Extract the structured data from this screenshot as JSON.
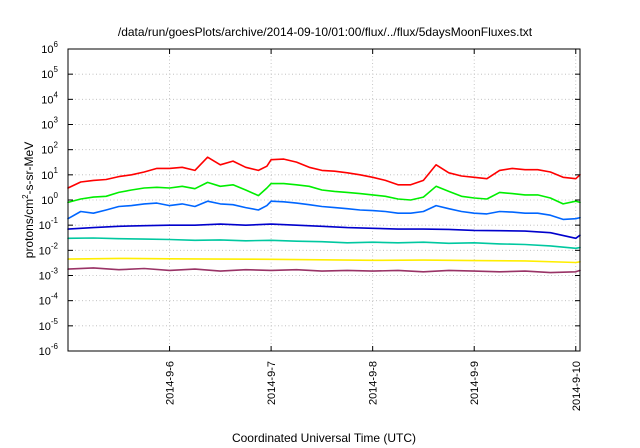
{
  "chart_data": {
    "type": "line",
    "title": "/data/run/goesPlots/archive/2014-09-10/01:00/flux/../flux/5daysMoonFluxes.txt",
    "xlabel": "Coordinated Universal Time (UTC)",
    "ylabel": "protons/cm2-s-sr-MeV",
    "ylabel_parts": {
      "pre": "protons/cm",
      "sup": "2",
      "post": "-s-sr-MeV"
    },
    "y_scale": "log",
    "ylim_exponents": [
      -6,
      6
    ],
    "y_ticks": [
      {
        "base": "10",
        "exp": "-6",
        "value": -6
      },
      {
        "base": "10",
        "exp": "-5",
        "value": -5
      },
      {
        "base": "10",
        "exp": "-4",
        "value": -4
      },
      {
        "base": "10",
        "exp": "-3",
        "value": -3
      },
      {
        "base": "10",
        "exp": "-2",
        "value": -2
      },
      {
        "base": "10",
        "exp": "-1",
        "value": -1
      },
      {
        "base": "10",
        "exp": "0",
        "value": 0
      },
      {
        "base": "10",
        "exp": "1",
        "value": 1
      },
      {
        "base": "10",
        "exp": "2",
        "value": 2
      },
      {
        "base": "10",
        "exp": "3",
        "value": 3
      },
      {
        "base": "10",
        "exp": "4",
        "value": 4
      },
      {
        "base": "10",
        "exp": "5",
        "value": 5
      },
      {
        "base": "10",
        "exp": "6",
        "value": 6
      }
    ],
    "xlim": [
      "2014-09-05T00:00",
      "2014-09-10T01:00"
    ],
    "x_ticks": [
      {
        "label": "2014-9-6",
        "value": "2014-09-06T00:00"
      },
      {
        "label": "2014-9-7",
        "value": "2014-09-07T00:00"
      },
      {
        "label": "2014-9-8",
        "value": "2014-09-08T00:00"
      },
      {
        "label": "2014-9-9",
        "value": "2014-09-09T00:00"
      },
      {
        "label": "2014-9-10",
        "value": "2014-09-10T00:00"
      }
    ],
    "grid": true,
    "legend": "none",
    "series": [
      {
        "color": "#ff0000",
        "points": [
          [
            "2014-09-05T00:00",
            3.0
          ],
          [
            "2014-09-05T03:00",
            5.2
          ],
          [
            "2014-09-05T06:00",
            6.0
          ],
          [
            "2014-09-05T09:00",
            6.5
          ],
          [
            "2014-09-05T12:00",
            8.5
          ],
          [
            "2014-09-05T15:00",
            10
          ],
          [
            "2014-09-05T18:00",
            13
          ],
          [
            "2014-09-05T21:00",
            18
          ],
          [
            "2014-09-06T00:00",
            18
          ],
          [
            "2014-09-06T03:00",
            20
          ],
          [
            "2014-09-06T06:00",
            15
          ],
          [
            "2014-09-06T09:00",
            50
          ],
          [
            "2014-09-06T12:00",
            25
          ],
          [
            "2014-09-06T15:00",
            35
          ],
          [
            "2014-09-06T18:00",
            20
          ],
          [
            "2014-09-06T21:00",
            15
          ],
          [
            "2014-09-06T23:00",
            22
          ],
          [
            "2014-09-07T00:00",
            40
          ],
          [
            "2014-09-07T03:00",
            42
          ],
          [
            "2014-09-07T06:00",
            32
          ],
          [
            "2014-09-07T09:00",
            20
          ],
          [
            "2014-09-07T12:00",
            15
          ],
          [
            "2014-09-07T15:00",
            14
          ],
          [
            "2014-09-07T18:00",
            12
          ],
          [
            "2014-09-07T21:00",
            10
          ],
          [
            "2014-09-08T00:00",
            8
          ],
          [
            "2014-09-08T03:00",
            6
          ],
          [
            "2014-09-08T06:00",
            4
          ],
          [
            "2014-09-08T09:00",
            4
          ],
          [
            "2014-09-08T12:00",
            6
          ],
          [
            "2014-09-08T15:00",
            25
          ],
          [
            "2014-09-08T18:00",
            12
          ],
          [
            "2014-09-08T21:00",
            9
          ],
          [
            "2014-09-09T00:00",
            8
          ],
          [
            "2014-09-09T03:00",
            7
          ],
          [
            "2014-09-09T06:00",
            15
          ],
          [
            "2014-09-09T09:00",
            18
          ],
          [
            "2014-09-09T12:00",
            16
          ],
          [
            "2014-09-09T15:00",
            16
          ],
          [
            "2014-09-09T18:00",
            13
          ],
          [
            "2014-09-09T21:00",
            8
          ],
          [
            "2014-09-10T00:00",
            7
          ],
          [
            "2014-09-10T01:00",
            10
          ]
        ]
      },
      {
        "color": "#00ee00",
        "points": [
          [
            "2014-09-05T00:00",
            0.8
          ],
          [
            "2014-09-05T03:00",
            1.1
          ],
          [
            "2014-09-05T06:00",
            1.3
          ],
          [
            "2014-09-05T09:00",
            1.4
          ],
          [
            "2014-09-05T12:00",
            2.0
          ],
          [
            "2014-09-05T15:00",
            2.5
          ],
          [
            "2014-09-05T18:00",
            3.0
          ],
          [
            "2014-09-05T21:00",
            3.2
          ],
          [
            "2014-09-06T00:00",
            3.0
          ],
          [
            "2014-09-06T03:00",
            3.5
          ],
          [
            "2014-09-06T06:00",
            2.8
          ],
          [
            "2014-09-06T09:00",
            5.0
          ],
          [
            "2014-09-06T12:00",
            3.5
          ],
          [
            "2014-09-06T15:00",
            4.0
          ],
          [
            "2014-09-06T18:00",
            2.5
          ],
          [
            "2014-09-06T21:00",
            1.5
          ],
          [
            "2014-09-06T23:00",
            3.0
          ],
          [
            "2014-09-07T00:00",
            4.5
          ],
          [
            "2014-09-07T03:00",
            4.5
          ],
          [
            "2014-09-07T06:00",
            4.0
          ],
          [
            "2014-09-07T09:00",
            3.5
          ],
          [
            "2014-09-07T12:00",
            2.5
          ],
          [
            "2014-09-07T15:00",
            2.2
          ],
          [
            "2014-09-07T18:00",
            2.0
          ],
          [
            "2014-09-07T21:00",
            1.8
          ],
          [
            "2014-09-08T00:00",
            1.6
          ],
          [
            "2014-09-08T03:00",
            1.4
          ],
          [
            "2014-09-08T06:00",
            1.1
          ],
          [
            "2014-09-08T09:00",
            1.0
          ],
          [
            "2014-09-08T12:00",
            1.3
          ],
          [
            "2014-09-08T15:00",
            3.5
          ],
          [
            "2014-09-08T18:00",
            2.2
          ],
          [
            "2014-09-08T21:00",
            1.4
          ],
          [
            "2014-09-09T00:00",
            1.2
          ],
          [
            "2014-09-09T03:00",
            1.1
          ],
          [
            "2014-09-09T06:00",
            2.0
          ],
          [
            "2014-09-09T09:00",
            1.8
          ],
          [
            "2014-09-09T12:00",
            1.6
          ],
          [
            "2014-09-09T15:00",
            1.6
          ],
          [
            "2014-09-09T18:00",
            1.2
          ],
          [
            "2014-09-09T21:00",
            0.7
          ],
          [
            "2014-09-10T00:00",
            0.9
          ],
          [
            "2014-09-10T01:00",
            0.8
          ]
        ]
      },
      {
        "color": "#0066ff",
        "points": [
          [
            "2014-09-05T00:00",
            0.18
          ],
          [
            "2014-09-05T03:00",
            0.35
          ],
          [
            "2014-09-05T06:00",
            0.3
          ],
          [
            "2014-09-05T09:00",
            0.4
          ],
          [
            "2014-09-05T12:00",
            0.55
          ],
          [
            "2014-09-05T15:00",
            0.6
          ],
          [
            "2014-09-05T18:00",
            0.7
          ],
          [
            "2014-09-05T21:00",
            0.75
          ],
          [
            "2014-09-06T00:00",
            0.6
          ],
          [
            "2014-09-06T03:00",
            0.7
          ],
          [
            "2014-09-06T06:00",
            0.55
          ],
          [
            "2014-09-06T09:00",
            0.9
          ],
          [
            "2014-09-06T12:00",
            0.7
          ],
          [
            "2014-09-06T15:00",
            0.65
          ],
          [
            "2014-09-06T18:00",
            0.5
          ],
          [
            "2014-09-06T21:00",
            0.4
          ],
          [
            "2014-09-06T23:00",
            0.6
          ],
          [
            "2014-09-07T00:00",
            0.9
          ],
          [
            "2014-09-07T03:00",
            0.85
          ],
          [
            "2014-09-07T06:00",
            0.75
          ],
          [
            "2014-09-07T09:00",
            0.65
          ],
          [
            "2014-09-07T12:00",
            0.55
          ],
          [
            "2014-09-07T15:00",
            0.5
          ],
          [
            "2014-09-07T18:00",
            0.45
          ],
          [
            "2014-09-07T21:00",
            0.4
          ],
          [
            "2014-09-08T00:00",
            0.38
          ],
          [
            "2014-09-08T03:00",
            0.35
          ],
          [
            "2014-09-08T06:00",
            0.3
          ],
          [
            "2014-09-08T09:00",
            0.3
          ],
          [
            "2014-09-08T12:00",
            0.35
          ],
          [
            "2014-09-08T15:00",
            0.6
          ],
          [
            "2014-09-08T18:00",
            0.45
          ],
          [
            "2014-09-08T21:00",
            0.35
          ],
          [
            "2014-09-09T00:00",
            0.3
          ],
          [
            "2014-09-09T03:00",
            0.28
          ],
          [
            "2014-09-09T06:00",
            0.35
          ],
          [
            "2014-09-09T09:00",
            0.33
          ],
          [
            "2014-09-09T12:00",
            0.3
          ],
          [
            "2014-09-09T15:00",
            0.3
          ],
          [
            "2014-09-09T18:00",
            0.25
          ],
          [
            "2014-09-09T21:00",
            0.17
          ],
          [
            "2014-09-10T00:00",
            0.18
          ],
          [
            "2014-09-10T01:00",
            0.2
          ]
        ]
      },
      {
        "color": "#0000cc",
        "points": [
          [
            "2014-09-05T00:00",
            0.07
          ],
          [
            "2014-09-05T06:00",
            0.08
          ],
          [
            "2014-09-05T12:00",
            0.09
          ],
          [
            "2014-09-05T18:00",
            0.095
          ],
          [
            "2014-09-06T00:00",
            0.1
          ],
          [
            "2014-09-06T06:00",
            0.1
          ],
          [
            "2014-09-06T12:00",
            0.11
          ],
          [
            "2014-09-06T18:00",
            0.1
          ],
          [
            "2014-09-07T00:00",
            0.11
          ],
          [
            "2014-09-07T06:00",
            0.1
          ],
          [
            "2014-09-07T12:00",
            0.09
          ],
          [
            "2014-09-07T18:00",
            0.08
          ],
          [
            "2014-09-08T00:00",
            0.075
          ],
          [
            "2014-09-08T06:00",
            0.07
          ],
          [
            "2014-09-08T12:00",
            0.07
          ],
          [
            "2014-09-08T18:00",
            0.068
          ],
          [
            "2014-09-09T00:00",
            0.062
          ],
          [
            "2014-09-09T06:00",
            0.06
          ],
          [
            "2014-09-09T12:00",
            0.058
          ],
          [
            "2014-09-09T18:00",
            0.05
          ],
          [
            "2014-09-10T00:00",
            0.03
          ],
          [
            "2014-09-10T01:00",
            0.04
          ]
        ]
      },
      {
        "color": "#00c8a0",
        "points": [
          [
            "2014-09-05T00:00",
            0.03
          ],
          [
            "2014-09-05T06:00",
            0.031
          ],
          [
            "2014-09-05T12:00",
            0.029
          ],
          [
            "2014-09-05T18:00",
            0.028
          ],
          [
            "2014-09-06T00:00",
            0.027
          ],
          [
            "2014-09-06T06:00",
            0.025
          ],
          [
            "2014-09-06T12:00",
            0.026
          ],
          [
            "2014-09-06T18:00",
            0.024
          ],
          [
            "2014-09-07T00:00",
            0.025
          ],
          [
            "2014-09-07T06:00",
            0.023
          ],
          [
            "2014-09-07T12:00",
            0.022
          ],
          [
            "2014-09-07T18:00",
            0.02
          ],
          [
            "2014-09-08T00:00",
            0.021
          ],
          [
            "2014-09-08T06:00",
            0.02
          ],
          [
            "2014-09-08T12:00",
            0.021
          ],
          [
            "2014-09-08T18:00",
            0.019
          ],
          [
            "2014-09-09T00:00",
            0.02
          ],
          [
            "2014-09-09T06:00",
            0.018
          ],
          [
            "2014-09-09T12:00",
            0.017
          ],
          [
            "2014-09-09T18:00",
            0.015
          ],
          [
            "2014-09-10T00:00",
            0.012
          ],
          [
            "2014-09-10T01:00",
            0.013
          ]
        ]
      },
      {
        "color": "#ffee00",
        "points": [
          [
            "2014-09-05T00:00",
            0.0045
          ],
          [
            "2014-09-05T12:00",
            0.0048
          ],
          [
            "2014-09-06T00:00",
            0.0046
          ],
          [
            "2014-09-06T12:00",
            0.0045
          ],
          [
            "2014-09-07T00:00",
            0.0044
          ],
          [
            "2014-09-07T12:00",
            0.0042
          ],
          [
            "2014-09-08T00:00",
            0.004
          ],
          [
            "2014-09-08T12:00",
            0.0041
          ],
          [
            "2014-09-09T00:00",
            0.0039
          ],
          [
            "2014-09-09T12:00",
            0.0038
          ],
          [
            "2014-09-10T00:00",
            0.0033
          ],
          [
            "2014-09-10T01:00",
            0.0035
          ]
        ]
      },
      {
        "color": "#993366",
        "points": [
          [
            "2014-09-05T00:00",
            0.0018
          ],
          [
            "2014-09-05T06:00",
            0.002
          ],
          [
            "2014-09-05T12:00",
            0.0017
          ],
          [
            "2014-09-05T18:00",
            0.0019
          ],
          [
            "2014-09-06T00:00",
            0.0016
          ],
          [
            "2014-09-06T06:00",
            0.0018
          ],
          [
            "2014-09-06T12:00",
            0.0015
          ],
          [
            "2014-09-06T18:00",
            0.0017
          ],
          [
            "2014-09-07T00:00",
            0.0016
          ],
          [
            "2014-09-07T06:00",
            0.0017
          ],
          [
            "2014-09-07T12:00",
            0.0015
          ],
          [
            "2014-09-07T18:00",
            0.0016
          ],
          [
            "2014-09-08T00:00",
            0.0015
          ],
          [
            "2014-09-08T06:00",
            0.0016
          ],
          [
            "2014-09-08T12:00",
            0.0014
          ],
          [
            "2014-09-08T18:00",
            0.0016
          ],
          [
            "2014-09-09T00:00",
            0.0015
          ],
          [
            "2014-09-09T06:00",
            0.0014
          ],
          [
            "2014-09-09T12:00",
            0.0015
          ],
          [
            "2014-09-09T18:00",
            0.0013
          ],
          [
            "2014-09-10T00:00",
            0.0014
          ],
          [
            "2014-09-10T01:00",
            0.0016
          ]
        ]
      }
    ]
  }
}
